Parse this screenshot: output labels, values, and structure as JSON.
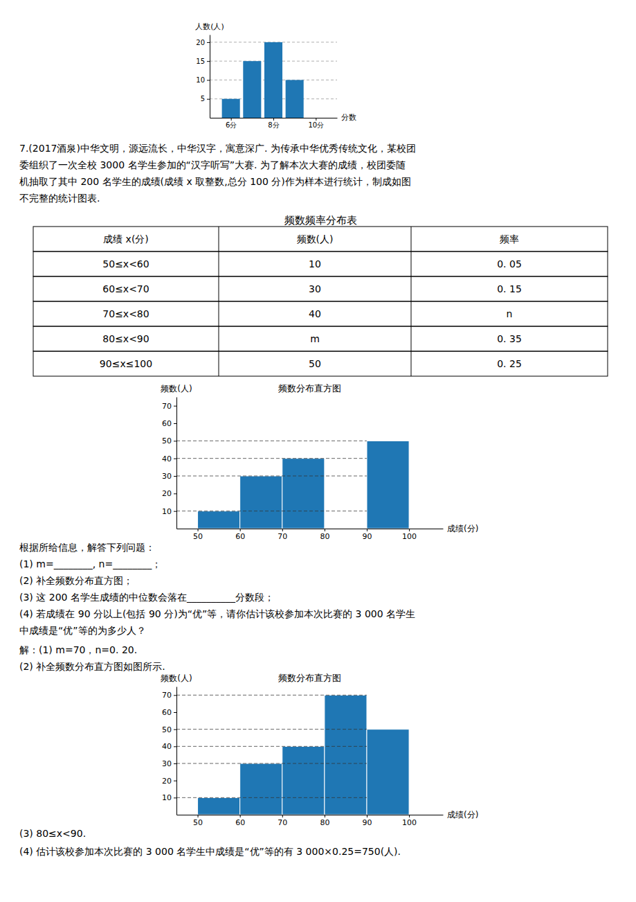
{
  "problem_text": [
    "7.(2017酒泉)中华文明，源远流长，中华汉字，寓意深广. 为传承中华优秀传统文化，某校团",
    "委组织了一次全校 3000 名学生参加的“汉字听写”大赛. 为了解本次大赛的成绩，校团委随",
    "机抽取了其中 200 名学生的成绩(成绩 x 取整数,总分 100 分)作为样本进行统计，制成如图",
    "不完整的统计图表."
  ],
  "table": {
    "title": "频数频率分布表",
    "headers": [
      "成绩 x(分)",
      "频数(人)",
      "频率"
    ],
    "rows": [
      [
        "50≤x<60",
        "10",
        "0. 05"
      ],
      [
        "60≤x<70",
        "30",
        "0. 15"
      ],
      [
        "70≤x<80",
        "40",
        "n"
      ],
      [
        "80≤x<90",
        "m",
        "0. 35"
      ],
      [
        "90≤x≤100",
        "50",
        "0. 25"
      ]
    ]
  },
  "questions": [
    "根据所给信息，解答下列问题：",
    "(1) m=________, n=________；",
    "(2) 补全频数分布直方图；",
    "(3) 这 200 名学生成绩的中位数会落在__________分数段；",
    "(4) 若成绩在 90 分以上(包括 90 分)为“优”等，请你估计该校参加本次比赛的 3 000 名学生",
    "中成绩是“优”等的为多少人？"
  ],
  "answers": [
    "解：(1) m=70，n=0. 20.",
    "(2) 补全频数分布直方图如图所示."
  ],
  "final_answers": [
    "(3) 80≤x<90.",
    "(4) 估计该校参加本次比赛的 3 000 名学生中成绩是“优”等的有 3 000×0.25=750(人)."
  ],
  "chart_data": [
    {
      "type": "bar",
      "y_label": "人数(人)",
      "x_label": "分数",
      "x": [
        6,
        7,
        8,
        9
      ],
      "values": [
        5,
        15,
        20,
        10
      ],
      "xlim": [
        5,
        11
      ],
      "xticks": [
        {
          "value": 6,
          "label": "6分"
        },
        {
          "value": 8,
          "label": "8分"
        },
        {
          "value": 10,
          "label": "10分"
        }
      ],
      "ylim": [
        0,
        22
      ],
      "yticks": [
        5,
        10,
        15,
        20
      ],
      "grid": true
    },
    {
      "type": "histogram",
      "title": "频数分布直方图",
      "y_label": "频数(人)",
      "x_label": "成绩(分)",
      "bins": [
        50,
        60,
        70,
        80,
        90,
        100
      ],
      "values": [
        10,
        30,
        40,
        null,
        50
      ],
      "xlim": [
        45,
        108
      ],
      "xticks": [
        50,
        60,
        70,
        80,
        90,
        100
      ],
      "ylim": [
        0,
        75
      ],
      "yticks": [
        10,
        20,
        30,
        40,
        50,
        60,
        70
      ],
      "dashed_lines": [
        10,
        30,
        40,
        50
      ]
    },
    {
      "type": "histogram",
      "title": "频数分布直方图",
      "y_label": "频数(人)",
      "x_label": "成绩(分)",
      "bins": [
        50,
        60,
        70,
        80,
        90,
        100
      ],
      "values": [
        10,
        30,
        40,
        70,
        50
      ],
      "xlim": [
        45,
        108
      ],
      "xticks": [
        50,
        60,
        70,
        80,
        90,
        100
      ],
      "ylim": [
        0,
        75
      ],
      "yticks": [
        10,
        20,
        30,
        40,
        50,
        60,
        70
      ],
      "dashed_lines": [
        10,
        30,
        40,
        50,
        70
      ]
    }
  ]
}
